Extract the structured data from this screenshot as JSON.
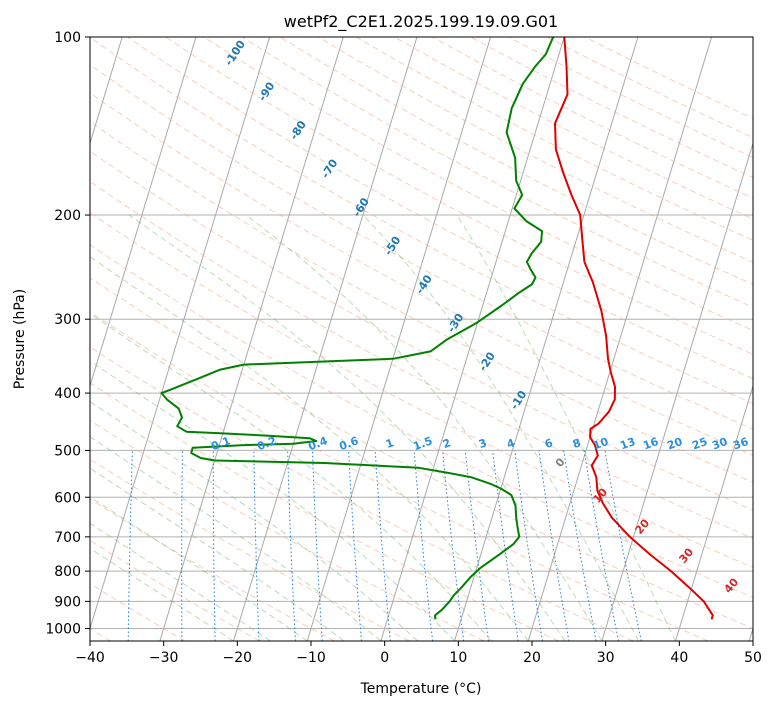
{
  "chart_data": {
    "type": "line",
    "title": "wetPf2_C2E1.2025.199.19.09.G01",
    "xlabel": "Temperature (°C)",
    "ylabel": "Pressure (hPa)",
    "xlim": [
      -40,
      50
    ],
    "ylim": [
      1050,
      100
    ],
    "y_scale": "log",
    "grid": true,
    "x_ticks": [
      "−40",
      "−30",
      "−20",
      "−10",
      "0",
      "10",
      "20",
      "30",
      "40",
      "50"
    ],
    "y_ticks": [
      "100",
      "200",
      "300",
      "400",
      "500",
      "600",
      "700",
      "800",
      "900",
      "1000"
    ],
    "series": [
      {
        "color": "#e00000",
        "points": [
          [
            0,
            100
          ],
          [
            1.5,
            112
          ],
          [
            2.8,
            125
          ],
          [
            2.3,
            140
          ],
          [
            3.5,
            155
          ],
          [
            5.5,
            170
          ],
          [
            7.5,
            185
          ],
          [
            9.5,
            200
          ],
          [
            10.8,
            220
          ],
          [
            12,
            240
          ],
          [
            14,
            260
          ],
          [
            16.3,
            290
          ],
          [
            18,
            320
          ],
          [
            19.2,
            350
          ],
          [
            20.2,
            370
          ],
          [
            21.3,
            390
          ],
          [
            21.8,
            410
          ],
          [
            21.5,
            430
          ],
          [
            20.6,
            450
          ],
          [
            19.7,
            460
          ],
          [
            20,
            475
          ],
          [
            21,
            490
          ],
          [
            21.8,
            510
          ],
          [
            21.4,
            530
          ],
          [
            22.5,
            555
          ],
          [
            23.2,
            585
          ],
          [
            24.5,
            615
          ],
          [
            26.3,
            650
          ],
          [
            29.5,
            700
          ],
          [
            33,
            750
          ],
          [
            36.5,
            800
          ],
          [
            39.5,
            850
          ],
          [
            42.2,
            900
          ],
          [
            44,
            950
          ],
          [
            44,
            965
          ]
        ]
      },
      {
        "color": "#008000",
        "points": [
          [
            -1.5,
            100
          ],
          [
            -1.8,
            107
          ],
          [
            -2.7,
            112
          ],
          [
            -3.7,
            120
          ],
          [
            -4.2,
            132
          ],
          [
            -3.9,
            145
          ],
          [
            -1.7,
            160
          ],
          [
            -0.6,
            175
          ],
          [
            0.8,
            185
          ],
          [
            0.3,
            195
          ],
          [
            2.5,
            205
          ],
          [
            5,
            213
          ],
          [
            5.3,
            222
          ],
          [
            4.5,
            232
          ],
          [
            4.2,
            240
          ],
          [
            5,
            247
          ],
          [
            6,
            255
          ],
          [
            5.8,
            262
          ],
          [
            4.5,
            270
          ],
          [
            2.5,
            285
          ],
          [
            -0.2,
            305
          ],
          [
            -3.5,
            325
          ],
          [
            -5.2,
            340
          ],
          [
            -10,
            350
          ],
          [
            -30,
            358
          ],
          [
            -33,
            365
          ],
          [
            -36,
            380
          ],
          [
            -39,
            395
          ],
          [
            -40,
            400
          ],
          [
            -39,
            410
          ],
          [
            -37,
            425
          ],
          [
            -36.2,
            440
          ],
          [
            -36.5,
            455
          ],
          [
            -35,
            465
          ],
          [
            -30,
            468
          ],
          [
            -24,
            472
          ],
          [
            -18,
            477
          ],
          [
            -17,
            482
          ],
          [
            -20,
            487
          ],
          [
            -27,
            490
          ],
          [
            -33.5,
            495
          ],
          [
            -33.5,
            505
          ],
          [
            -32,
            515
          ],
          [
            -30,
            520
          ],
          [
            -15,
            525
          ],
          [
            -2,
            535
          ],
          [
            2,
            545
          ],
          [
            5.5,
            555
          ],
          [
            8.5,
            570
          ],
          [
            10,
            580
          ],
          [
            11.7,
            595
          ],
          [
            12.7,
            620
          ],
          [
            13.3,
            650
          ],
          [
            14,
            680
          ],
          [
            14.5,
            700
          ],
          [
            14,
            720
          ],
          [
            12.5,
            750
          ],
          [
            10.5,
            790
          ],
          [
            9.5,
            820
          ],
          [
            8.8,
            850
          ],
          [
            8,
            880
          ],
          [
            7.7,
            900
          ],
          [
            7,
            930
          ],
          [
            6.3,
            950
          ],
          [
            6.5,
            965
          ]
        ]
      }
    ],
    "isotherm_labels": [
      "-100",
      "-90",
      "-80",
      "-70",
      "-60",
      "-50",
      "-40",
      "-30",
      "-20",
      "-10"
    ],
    "mixing_ratio_labels": [
      "0.1",
      "0.2",
      "0.4",
      "0.6",
      "1",
      "1.5",
      "2",
      "3",
      "4",
      "6",
      "8",
      "10",
      "13",
      "16",
      "20",
      "25",
      "30",
      "36"
    ],
    "dry_adiabat_labels": [
      "0",
      "10",
      "20",
      "30",
      "40"
    ]
  }
}
